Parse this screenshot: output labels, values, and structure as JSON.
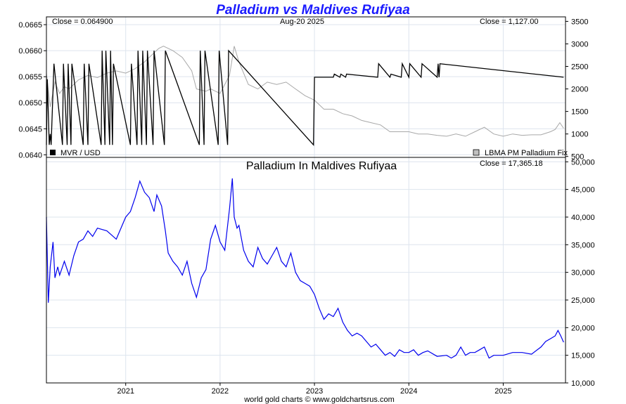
{
  "title": "Palladium vs Maldives Rufiyaa",
  "footer": "world gold charts © www.goldchartsrus.com",
  "colors": {
    "title": "#1a1aff",
    "mvr_line": "#000000",
    "palladium_gray": "#a8a8a8",
    "main_line": "#0000ee",
    "grid": "#dde4ee"
  },
  "chart_data": [
    {
      "type": "line",
      "panel": "top",
      "annotations": {
        "left_close": "Close = 0.064900",
        "date": "Aug-20  2025",
        "right_close": "Close = 1,127.00"
      },
      "legend": [
        {
          "label": "MVR / USD",
          "color": "#000000",
          "position": "bottom-left"
        },
        {
          "label": "LBMA PM Palladium Fix",
          "color": "#a8a8a8",
          "position": "bottom-right"
        }
      ],
      "x_ticks": [
        "2021",
        "2022",
        "2023",
        "2024",
        "2025"
      ],
      "y_left": {
        "ticks": [
          "0.0640",
          "0.0645",
          "0.0650",
          "0.0655",
          "0.0660",
          "0.0665"
        ],
        "lim": [
          0.06395,
          0.06665
        ]
      },
      "y_right": {
        "ticks": [
          "500",
          "1000",
          "1500",
          "2000",
          "2500",
          "3000",
          "3500"
        ],
        "lim": [
          480,
          3600
        ]
      },
      "series": [
        {
          "name": "MVR / USD",
          "axis": "left",
          "x": [
            2020.16,
            2020.17,
            2020.19,
            2020.2,
            2020.21,
            2020.24,
            2020.33,
            2020.34,
            2020.38,
            2020.39,
            2020.42,
            2020.43,
            2020.55,
            2020.56,
            2020.6,
            2020.61,
            2020.74,
            2020.75,
            2020.78,
            2020.79,
            2020.83,
            2020.84,
            2020.86,
            2020.87,
            2021.05,
            2021.06,
            2021.12,
            2021.13,
            2021.17,
            2021.18,
            2021.22,
            2021.23,
            2021.29,
            2021.3,
            2021.41,
            2021.42,
            2021.78,
            2021.79,
            2021.83,
            2021.84,
            2021.98,
            2021.99,
            2022.08,
            2022.09,
            2022.99,
            2023.0,
            2023.2,
            2023.21,
            2023.27,
            2023.28,
            2023.33,
            2023.34,
            2023.67,
            2023.68,
            2023.8,
            2023.81,
            2023.92,
            2023.93,
            2024.0,
            2024.01,
            2024.13,
            2024.14,
            2024.3,
            2024.31,
            2024.32,
            2024.33,
            2025.64
          ],
          "y": [
            0.06419,
            0.06545,
            0.06419,
            0.0644,
            0.06419,
            0.06575,
            0.06419,
            0.06575,
            0.06419,
            0.06575,
            0.06419,
            0.06575,
            0.06419,
            0.06575,
            0.06419,
            0.06575,
            0.06419,
            0.066,
            0.06419,
            0.066,
            0.06419,
            0.066,
            0.06419,
            0.06575,
            0.06419,
            0.06575,
            0.06419,
            0.066,
            0.06419,
            0.066,
            0.06419,
            0.066,
            0.06419,
            0.066,
            0.06419,
            0.066,
            0.06419,
            0.066,
            0.06419,
            0.066,
            0.06419,
            0.066,
            0.06419,
            0.066,
            0.06419,
            0.06549,
            0.06549,
            0.06555,
            0.06549,
            0.06555,
            0.06549,
            0.06555,
            0.06549,
            0.06575,
            0.06549,
            0.06555,
            0.06549,
            0.06575,
            0.06549,
            0.06575,
            0.06549,
            0.06575,
            0.06549,
            0.06575,
            0.06549,
            0.06575,
            0.06549
          ]
        },
        {
          "name": "LBMA PM Palladium Fix",
          "axis": "right",
          "x": [
            2020.16,
            2020.2,
            2020.25,
            2020.3,
            2020.35,
            2020.4,
            2020.5,
            2020.6,
            2020.7,
            2020.8,
            2020.9,
            2021.0,
            2021.1,
            2021.2,
            2021.3,
            2021.35,
            2021.4,
            2021.5,
            2021.6,
            2021.7,
            2021.75,
            2021.85,
            2021.9,
            2022.0,
            2022.1,
            2022.15,
            2022.2,
            2022.3,
            2022.4,
            2022.5,
            2022.6,
            2022.7,
            2022.8,
            2022.9,
            2023.0,
            2023.1,
            2023.2,
            2023.3,
            2023.4,
            2023.5,
            2023.6,
            2023.7,
            2023.8,
            2023.9,
            2024.0,
            2024.1,
            2024.2,
            2024.3,
            2024.4,
            2024.5,
            2024.6,
            2024.7,
            2024.8,
            2024.9,
            2025.0,
            2025.1,
            2025.2,
            2025.3,
            2025.4,
            2025.5,
            2025.55,
            2025.6,
            2025.64
          ],
          "y": [
            2350,
            1600,
            2150,
            1900,
            2050,
            2000,
            2200,
            2300,
            2250,
            2350,
            2400,
            2350,
            2450,
            2600,
            2800,
            2900,
            2950,
            2850,
            2700,
            2400,
            2000,
            1950,
            2000,
            1900,
            2300,
            2950,
            2600,
            2100,
            2000,
            2150,
            2100,
            2150,
            2000,
            1850,
            1750,
            1550,
            1550,
            1450,
            1400,
            1300,
            1250,
            1200,
            1050,
            1050,
            1050,
            1000,
            1000,
            970,
            950,
            1000,
            950,
            1050,
            1150,
            1000,
            950,
            1000,
            970,
            980,
            980,
            1050,
            1100,
            1250,
            1127
          ]
        }
      ]
    },
    {
      "type": "line",
      "panel": "bottom",
      "title": "Palladium In Maldives Rufiyaa",
      "annotations": {
        "right_close": "Close = 17,365.18"
      },
      "x_ticks": [
        "2021",
        "2022",
        "2023",
        "2024",
        "2025"
      ],
      "y_right": {
        "ticks": [
          "10,000",
          "15,000",
          "20,000",
          "25,000",
          "30,000",
          "35,000",
          "40,000",
          "45,000",
          "50,000"
        ],
        "lim": [
          10000,
          50800
        ]
      },
      "series": [
        {
          "name": "Palladium In Maldives Rufiyaa",
          "x": [
            2020.16,
            2020.18,
            2020.2,
            2020.23,
            2020.25,
            2020.28,
            2020.3,
            2020.35,
            2020.4,
            2020.45,
            2020.5,
            2020.55,
            2020.6,
            2020.65,
            2020.7,
            2020.8,
            2020.9,
            2021.0,
            2021.05,
            2021.1,
            2021.15,
            2021.2,
            2021.25,
            2021.3,
            2021.33,
            2021.38,
            2021.42,
            2021.45,
            2021.5,
            2021.55,
            2021.6,
            2021.65,
            2021.7,
            2021.75,
            2021.8,
            2021.85,
            2021.9,
            2021.95,
            2022.0,
            2022.05,
            2022.1,
            2022.13,
            2022.15,
            2022.18,
            2022.2,
            2022.25,
            2022.3,
            2022.35,
            2022.4,
            2022.45,
            2022.5,
            2022.55,
            2022.6,
            2022.65,
            2022.7,
            2022.75,
            2022.8,
            2022.85,
            2022.9,
            2022.95,
            2023.0,
            2023.05,
            2023.1,
            2023.15,
            2023.2,
            2023.25,
            2023.3,
            2023.35,
            2023.4,
            2023.45,
            2023.5,
            2023.55,
            2023.6,
            2023.65,
            2023.7,
            2023.75,
            2023.8,
            2023.85,
            2023.9,
            2023.95,
            2024.0,
            2024.05,
            2024.1,
            2024.15,
            2024.2,
            2024.3,
            2024.4,
            2024.45,
            2024.5,
            2024.55,
            2024.6,
            2024.65,
            2024.7,
            2024.75,
            2024.8,
            2024.85,
            2024.9,
            2025.0,
            2025.1,
            2025.2,
            2025.3,
            2025.4,
            2025.45,
            2025.5,
            2025.55,
            2025.58,
            2025.61,
            2025.64
          ],
          "y": [
            40000,
            24500,
            31000,
            35500,
            29000,
            31000,
            29500,
            32000,
            29500,
            33000,
            35500,
            36000,
            37500,
            36500,
            38000,
            37500,
            36000,
            40000,
            41000,
            43500,
            46500,
            44500,
            43500,
            41000,
            44000,
            42000,
            37500,
            33500,
            32000,
            31000,
            29500,
            32000,
            28000,
            25500,
            29000,
            30500,
            36000,
            38500,
            35500,
            34000,
            41500,
            47000,
            40000,
            38000,
            38500,
            34000,
            32000,
            31000,
            34500,
            32500,
            31500,
            33000,
            34500,
            32000,
            31000,
            33500,
            30000,
            28500,
            28000,
            27500,
            26000,
            23500,
            21500,
            22500,
            22000,
            23500,
            21000,
            19500,
            18500,
            19000,
            18500,
            17500,
            16500,
            17000,
            16000,
            15000,
            15500,
            14800,
            16000,
            15500,
            15500,
            16000,
            15000,
            15500,
            15800,
            14800,
            15000,
            14500,
            15000,
            16500,
            15000,
            15500,
            15500,
            16000,
            16500,
            14500,
            15000,
            15000,
            15500,
            15500,
            15200,
            16500,
            17500,
            18000,
            18500,
            19500,
            18500,
            17365
          ]
        }
      ]
    }
  ]
}
